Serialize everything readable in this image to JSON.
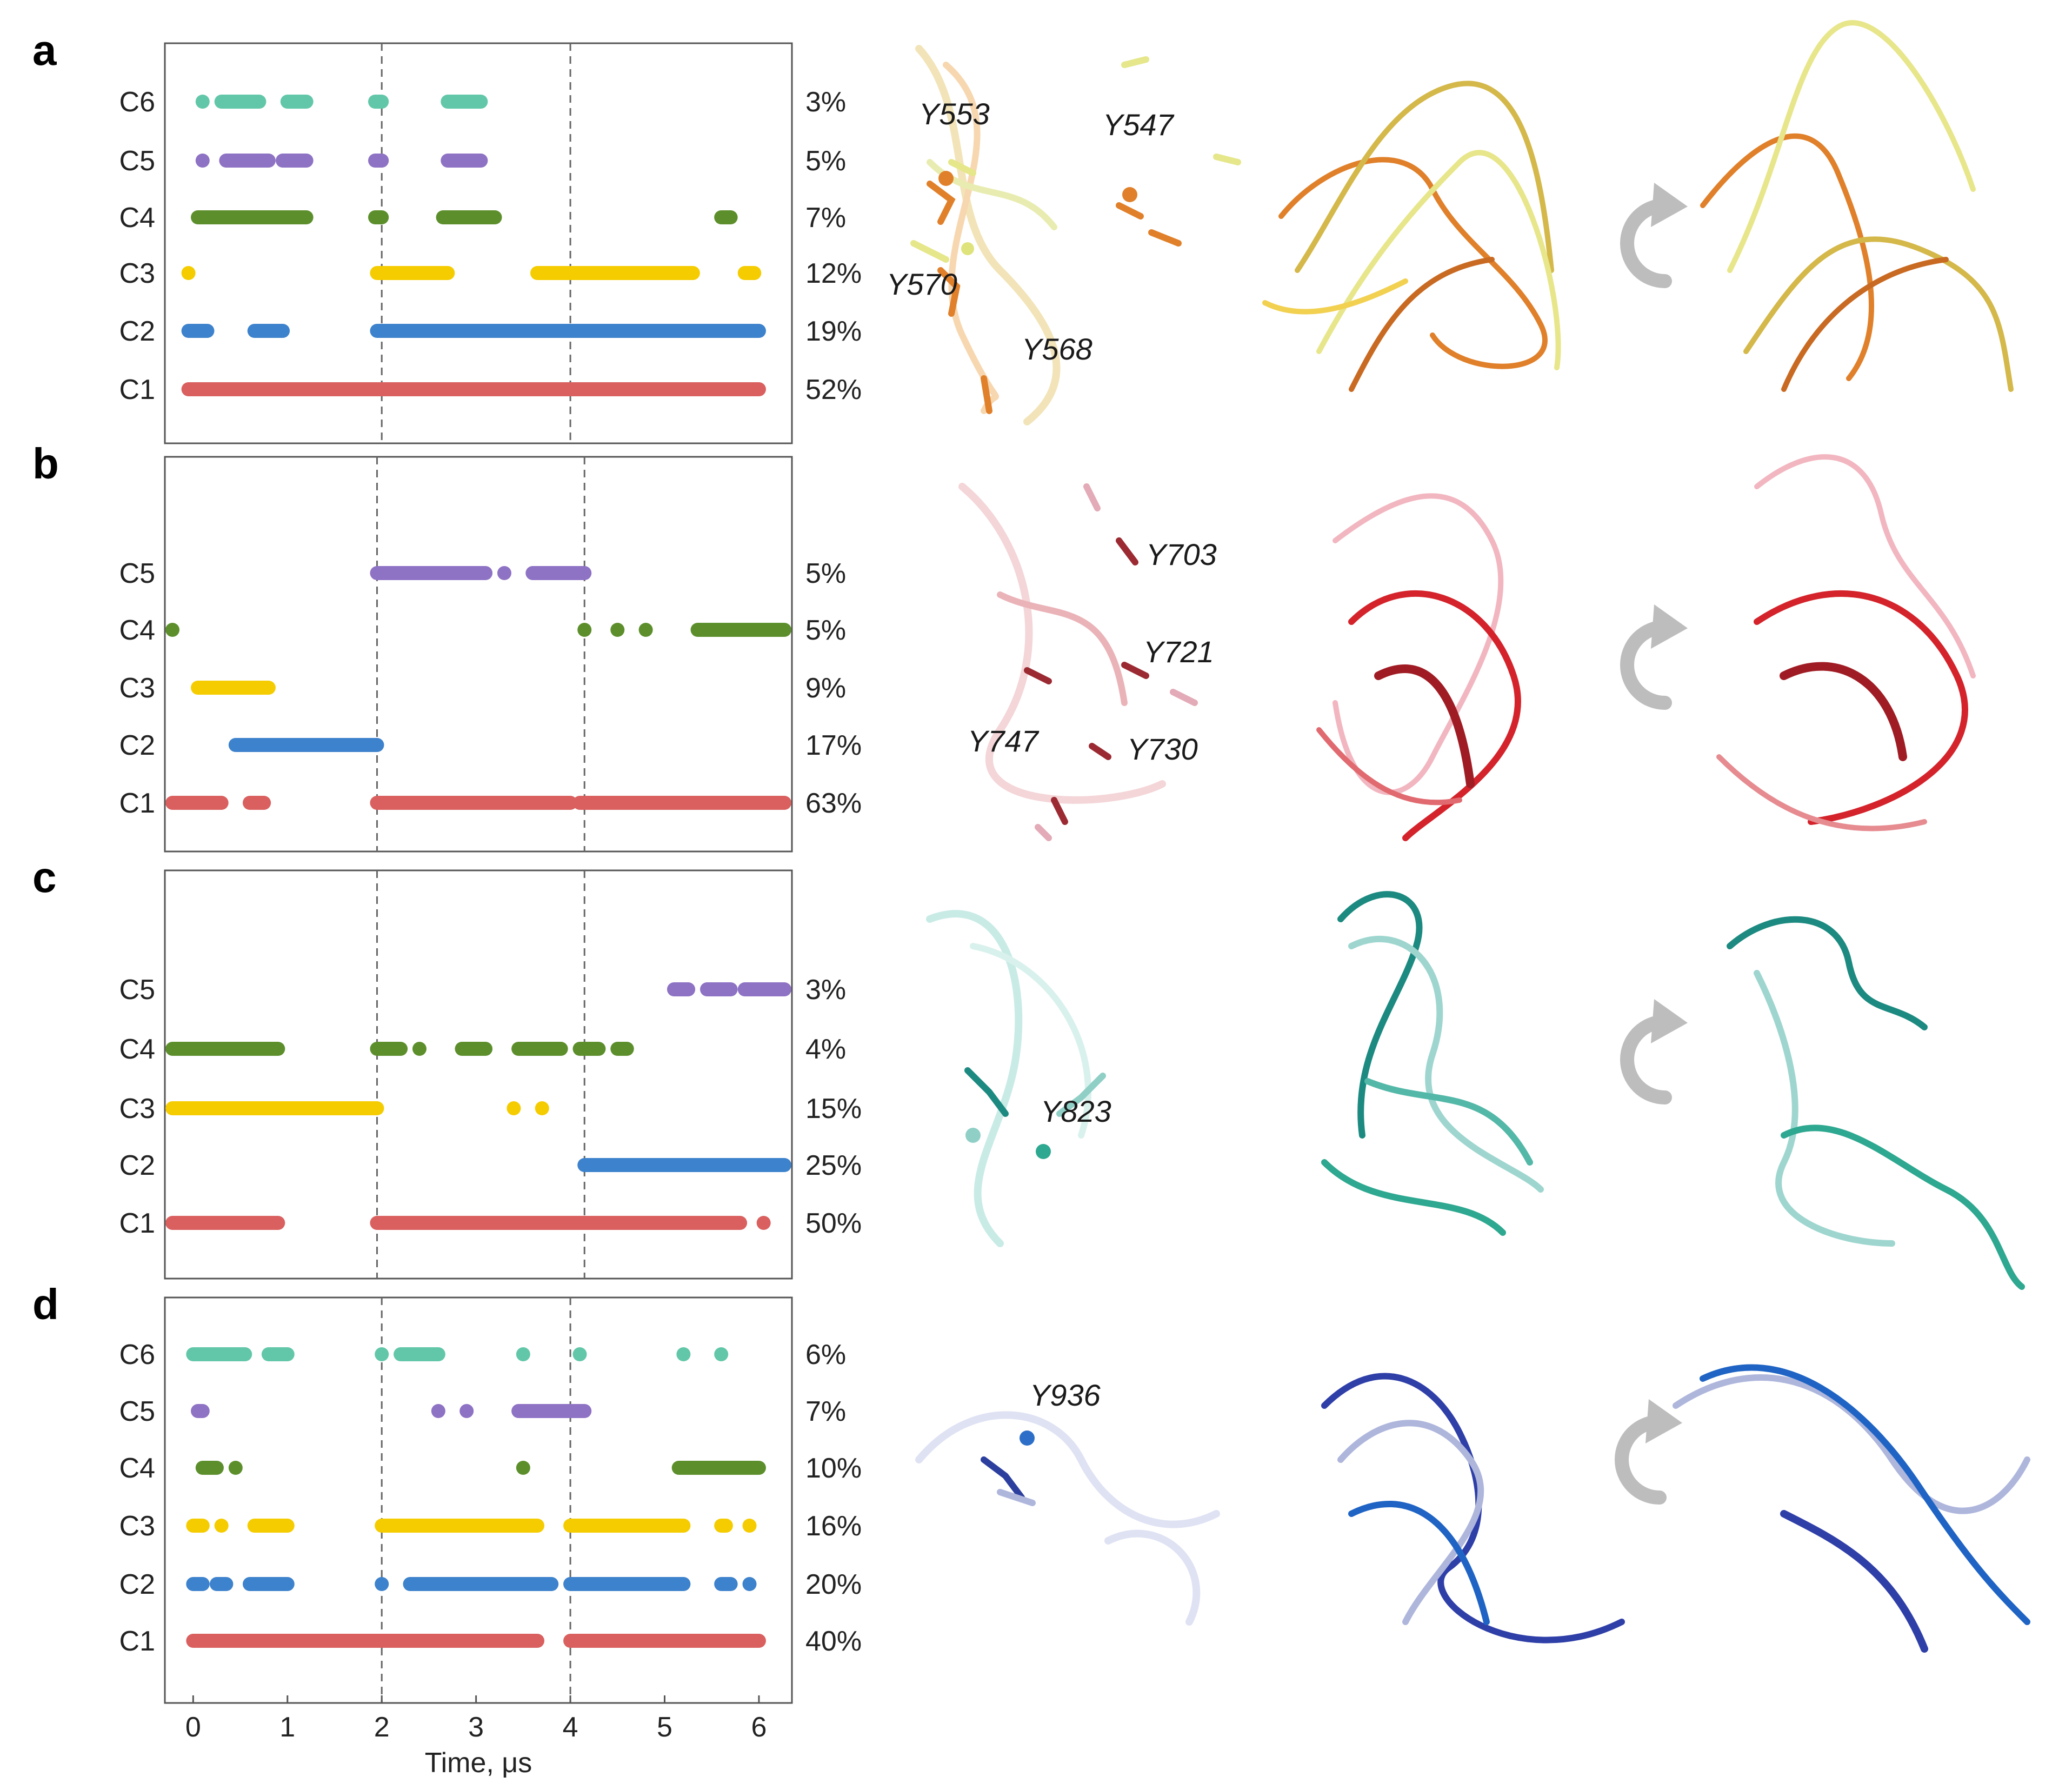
{
  "figure": {
    "x_axis": {
      "label": "Time, μs",
      "min": -0.3,
      "max": 6.35,
      "ticks": [
        0,
        1,
        2,
        3,
        4,
        5,
        6
      ]
    },
    "cluster_colors": {
      "C1": "#d9605f",
      "C2": "#3d82cc",
      "C3": "#f5cc00",
      "C4": "#5c8f2c",
      "C5": "#8e72c4",
      "C6": "#62c7a8"
    },
    "rotate_icon": "rotate-arrow-icon"
  },
  "chart_data": [
    {
      "type": "scatter",
      "panel": "a",
      "vlines": [
        2.0,
        4.0
      ],
      "residue_labels": [
        "Y553",
        "Y547",
        "Y570",
        "Y568"
      ],
      "series": [
        {
          "name": "C6",
          "percent": "3%",
          "segments": [
            [
              0.1,
              0.1
            ],
            [
              0.3,
              0.7
            ],
            [
              1.0,
              1.2
            ],
            [
              1.93,
              2.0
            ],
            [
              2.7,
              3.05
            ]
          ]
        },
        {
          "name": "C5",
          "percent": "5%",
          "segments": [
            [
              0.1,
              0.1
            ],
            [
              0.35,
              0.8
            ],
            [
              0.95,
              1.2
            ],
            [
              1.93,
              2.0
            ],
            [
              2.7,
              3.05
            ]
          ]
        },
        {
          "name": "C4",
          "percent": "7%",
          "segments": [
            [
              0.05,
              1.2
            ],
            [
              1.93,
              2.0
            ],
            [
              2.65,
              3.2
            ],
            [
              5.6,
              5.7
            ]
          ]
        },
        {
          "name": "C3",
          "percent": "12%",
          "segments": [
            [
              -0.05,
              -0.05
            ],
            [
              1.95,
              2.7
            ],
            [
              3.65,
              5.3
            ],
            [
              5.85,
              5.95
            ]
          ]
        },
        {
          "name": "C2",
          "percent": "19%",
          "segments": [
            [
              -0.05,
              0.15
            ],
            [
              0.65,
              0.95
            ],
            [
              1.95,
              6.0
            ]
          ]
        },
        {
          "name": "C1",
          "percent": "52%",
          "segments": [
            [
              -0.05,
              6.0
            ]
          ]
        }
      ]
    },
    {
      "type": "scatter",
      "panel": "b",
      "vlines": [
        1.95,
        4.15
      ],
      "residue_labels": [
        "Y703",
        "Y721",
        "Y747",
        "Y730"
      ],
      "series": [
        {
          "name": "C5",
          "percent": "5%",
          "segments": [
            [
              1.95,
              3.1
            ],
            [
              3.3,
              3.3
            ],
            [
              3.6,
              4.15
            ]
          ]
        },
        {
          "name": "C4",
          "percent": "5%",
          "segments": [
            [
              -0.3,
              -0.3
            ],
            [
              4.15,
              4.15
            ],
            [
              4.5,
              4.5
            ],
            [
              4.8,
              4.8
            ],
            [
              5.35,
              6.35
            ]
          ]
        },
        {
          "name": "C3",
          "percent": "9%",
          "segments": [
            [
              0.05,
              0.8
            ]
          ]
        },
        {
          "name": "C2",
          "percent": "17%",
          "segments": [
            [
              0.45,
              1.95
            ]
          ]
        },
        {
          "name": "C1",
          "percent": "63%",
          "segments": [
            [
              -0.3,
              0.3
            ],
            [
              0.6,
              0.75
            ],
            [
              1.95,
              4.0
            ],
            [
              4.1,
              6.35
            ]
          ]
        }
      ]
    },
    {
      "type": "scatter",
      "panel": "c",
      "vlines": [
        1.95,
        4.15
      ],
      "residue_labels": [
        "Y823"
      ],
      "series": [
        {
          "name": "C5",
          "percent": "3%",
          "segments": [
            [
              5.1,
              5.25
            ],
            [
              5.45,
              5.7
            ],
            [
              5.85,
              6.35
            ]
          ]
        },
        {
          "name": "C4",
          "percent": "4%",
          "segments": [
            [
              -0.3,
              0.9
            ],
            [
              1.95,
              2.2
            ],
            [
              2.4,
              2.4
            ],
            [
              2.85,
              3.1
            ],
            [
              3.45,
              3.9
            ],
            [
              4.1,
              4.3
            ],
            [
              4.5,
              4.6
            ]
          ]
        },
        {
          "name": "C3",
          "percent": "15%",
          "segments": [
            [
              -0.3,
              1.95
            ],
            [
              3.4,
              3.4
            ],
            [
              3.7,
              3.7
            ]
          ]
        },
        {
          "name": "C2",
          "percent": "25%",
          "segments": [
            [
              4.15,
              6.35
            ]
          ]
        },
        {
          "name": "C1",
          "percent": "50%",
          "segments": [
            [
              -0.3,
              0.9
            ],
            [
              1.95,
              5.8
            ],
            [
              6.05,
              6.05
            ]
          ]
        }
      ]
    },
    {
      "type": "scatter",
      "panel": "d",
      "vlines": [
        2.0,
        4.0
      ],
      "residue_labels": [
        "Y936"
      ],
      "series": [
        {
          "name": "C6",
          "percent": "6%",
          "segments": [
            [
              0.0,
              0.55
            ],
            [
              0.8,
              1.0
            ],
            [
              2.0,
              2.0
            ],
            [
              2.2,
              2.6
            ],
            [
              3.5,
              3.5
            ],
            [
              4.1,
              4.1
            ],
            [
              5.2,
              5.2
            ],
            [
              5.6,
              5.6
            ]
          ]
        },
        {
          "name": "C5",
          "percent": "7%",
          "segments": [
            [
              0.05,
              0.1
            ],
            [
              2.6,
              2.6
            ],
            [
              2.9,
              2.9
            ],
            [
              3.45,
              4.15
            ]
          ]
        },
        {
          "name": "C4",
          "percent": "10%",
          "segments": [
            [
              0.1,
              0.25
            ],
            [
              0.45,
              0.45
            ],
            [
              3.5,
              3.5
            ],
            [
              5.15,
              6.0
            ]
          ]
        },
        {
          "name": "C3",
          "percent": "16%",
          "segments": [
            [
              0.0,
              0.1
            ],
            [
              0.3,
              0.3
            ],
            [
              0.65,
              1.0
            ],
            [
              2.0,
              3.65
            ],
            [
              4.0,
              5.2
            ],
            [
              5.6,
              5.65
            ],
            [
              5.9,
              5.9
            ]
          ]
        },
        {
          "name": "C2",
          "percent": "20%",
          "segments": [
            [
              0.0,
              0.1
            ],
            [
              0.25,
              0.35
            ],
            [
              0.6,
              1.0
            ],
            [
              2.0,
              2.0
            ],
            [
              2.3,
              3.8
            ],
            [
              4.0,
              5.2
            ],
            [
              5.6,
              5.7
            ],
            [
              5.9,
              5.9
            ]
          ]
        },
        {
          "name": "C1",
          "percent": "40%",
          "segments": [
            [
              0.0,
              3.65
            ],
            [
              4.0,
              6.0
            ]
          ]
        }
      ]
    }
  ]
}
